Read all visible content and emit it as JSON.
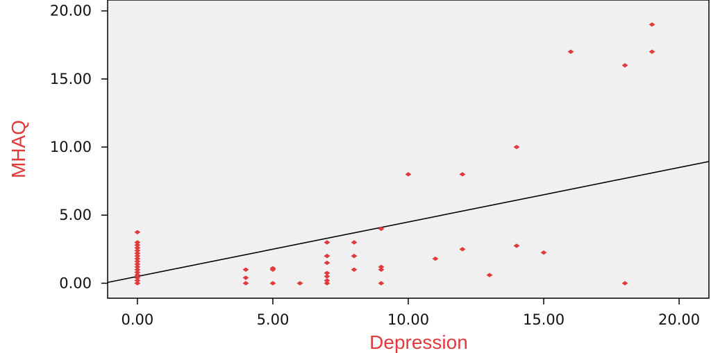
{
  "chart_data": {
    "type": "scatter",
    "title": "",
    "xlabel": "Depression",
    "ylabel": "MHAQ",
    "xlim": [
      -1.1,
      21.1
    ],
    "ylim": [
      -1.1,
      20.8
    ],
    "xticks": [
      0,
      5,
      10,
      15,
      20
    ],
    "xtick_labels": [
      "0.00",
      "5.00",
      "10.00",
      "15.00",
      "20.00"
    ],
    "yticks": [
      0,
      5,
      10,
      15,
      20
    ],
    "ytick_labels": [
      "0.00",
      "5.00",
      "10.00",
      "15.00",
      "20.00"
    ],
    "grid": false,
    "legend": "none",
    "colors": {
      "points": "#e03a3a",
      "axis_title": "#e03a3a",
      "plot_background": "#f0f0f0",
      "fit_line": "#000000"
    },
    "points": [
      {
        "x": 0,
        "y": 0.0
      },
      {
        "x": 0,
        "y": 0.2
      },
      {
        "x": 0,
        "y": 0.4
      },
      {
        "x": 0,
        "y": 0.6
      },
      {
        "x": 0,
        "y": 0.8
      },
      {
        "x": 0,
        "y": 1.0
      },
      {
        "x": 0,
        "y": 1.2
      },
      {
        "x": 0,
        "y": 1.4
      },
      {
        "x": 0,
        "y": 1.6
      },
      {
        "x": 0,
        "y": 1.8
      },
      {
        "x": 0,
        "y": 2.0
      },
      {
        "x": 0,
        "y": 2.2
      },
      {
        "x": 0,
        "y": 2.4
      },
      {
        "x": 0,
        "y": 2.6
      },
      {
        "x": 0,
        "y": 2.8
      },
      {
        "x": 0,
        "y": 3.0
      },
      {
        "x": 0,
        "y": 3.75
      },
      {
        "x": 4,
        "y": 0.0
      },
      {
        "x": 4,
        "y": 0.4
      },
      {
        "x": 4,
        "y": 1.0
      },
      {
        "x": 5,
        "y": 0.0
      },
      {
        "x": 5,
        "y": 1.0
      },
      {
        "x": 5,
        "y": 1.1
      },
      {
        "x": 6,
        "y": 0.0
      },
      {
        "x": 7,
        "y": 0.0
      },
      {
        "x": 7,
        "y": 0.2
      },
      {
        "x": 7,
        "y": 0.5
      },
      {
        "x": 7,
        "y": 0.75
      },
      {
        "x": 7,
        "y": 1.5
      },
      {
        "x": 7,
        "y": 2.0
      },
      {
        "x": 7,
        "y": 3.0
      },
      {
        "x": 8,
        "y": 1.0
      },
      {
        "x": 8,
        "y": 2.0
      },
      {
        "x": 8,
        "y": 3.0
      },
      {
        "x": 9,
        "y": 0.0
      },
      {
        "x": 9,
        "y": 1.0
      },
      {
        "x": 9,
        "y": 1.2
      },
      {
        "x": 9,
        "y": 4.0
      },
      {
        "x": 10,
        "y": 8.0
      },
      {
        "x": 11,
        "y": 1.8
      },
      {
        "x": 12,
        "y": 2.5
      },
      {
        "x": 12,
        "y": 8.0
      },
      {
        "x": 13,
        "y": 0.6
      },
      {
        "x": 14,
        "y": 2.75
      },
      {
        "x": 14,
        "y": 10.0
      },
      {
        "x": 15,
        "y": 2.25
      },
      {
        "x": 16,
        "y": 17.0
      },
      {
        "x": 18,
        "y": 0.0
      },
      {
        "x": 18,
        "y": 16.0
      },
      {
        "x": 19,
        "y": 17.0
      },
      {
        "x": 19,
        "y": 19.0
      }
    ],
    "fit_line": {
      "intercept": 0.5,
      "slope": 0.4
    }
  }
}
